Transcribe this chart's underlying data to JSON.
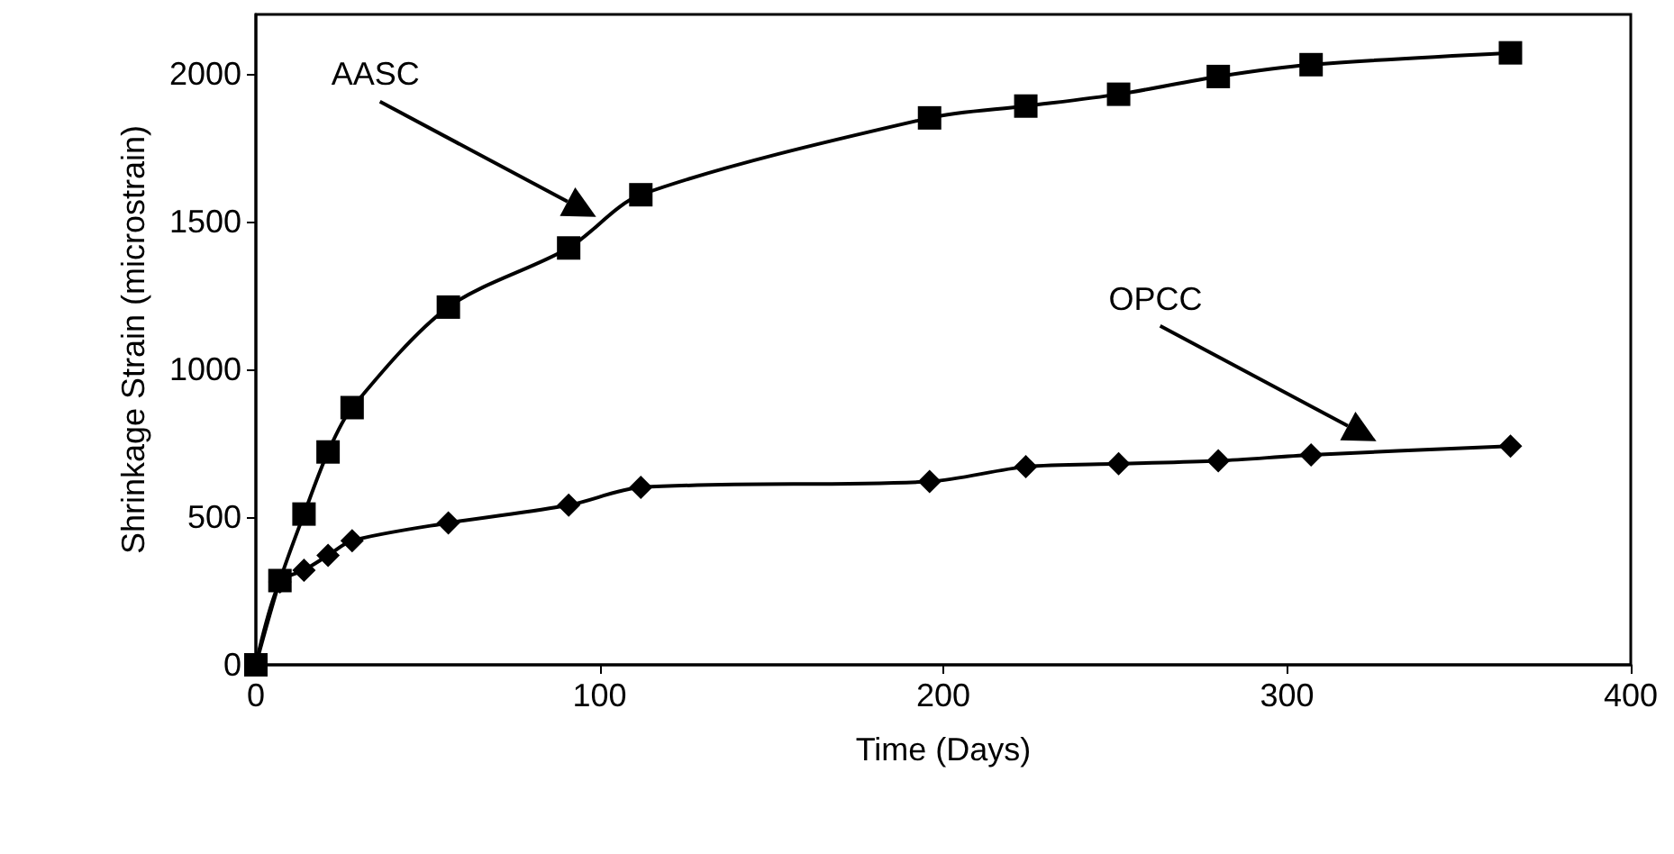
{
  "chart_data": {
    "type": "line",
    "xlabel": "Time (Days)",
    "ylabel": "Shrinkage Strain (microstrain)",
    "xlim": [
      0,
      400
    ],
    "xticks": [
      0,
      100,
      200,
      300,
      400
    ],
    "ylim": [
      0,
      2200
    ],
    "yticks": [
      0,
      500,
      1000,
      1500,
      2000
    ],
    "grid": false,
    "series": [
      {
        "color": "#000000",
        "marker": "square",
        "x": [
          0,
          7,
          14,
          21,
          28,
          56,
          91,
          112,
          196,
          224,
          251,
          280,
          307,
          365
        ],
        "values": [
          0,
          285,
          510,
          720,
          870,
          1210,
          1410,
          1590,
          1850,
          1890,
          1930,
          1990,
          2030,
          2070
        ]
      },
      {
        "color": "#000000",
        "marker": "diamond",
        "x": [
          0,
          7,
          14,
          21,
          28,
          56,
          91,
          112,
          196,
          224,
          251,
          280,
          307,
          365
        ],
        "values": [
          0,
          280,
          320,
          370,
          420,
          480,
          540,
          600,
          620,
          670,
          680,
          690,
          710,
          740
        ]
      }
    ],
    "annotations": [
      "AASC",
      "OPCC"
    ]
  }
}
